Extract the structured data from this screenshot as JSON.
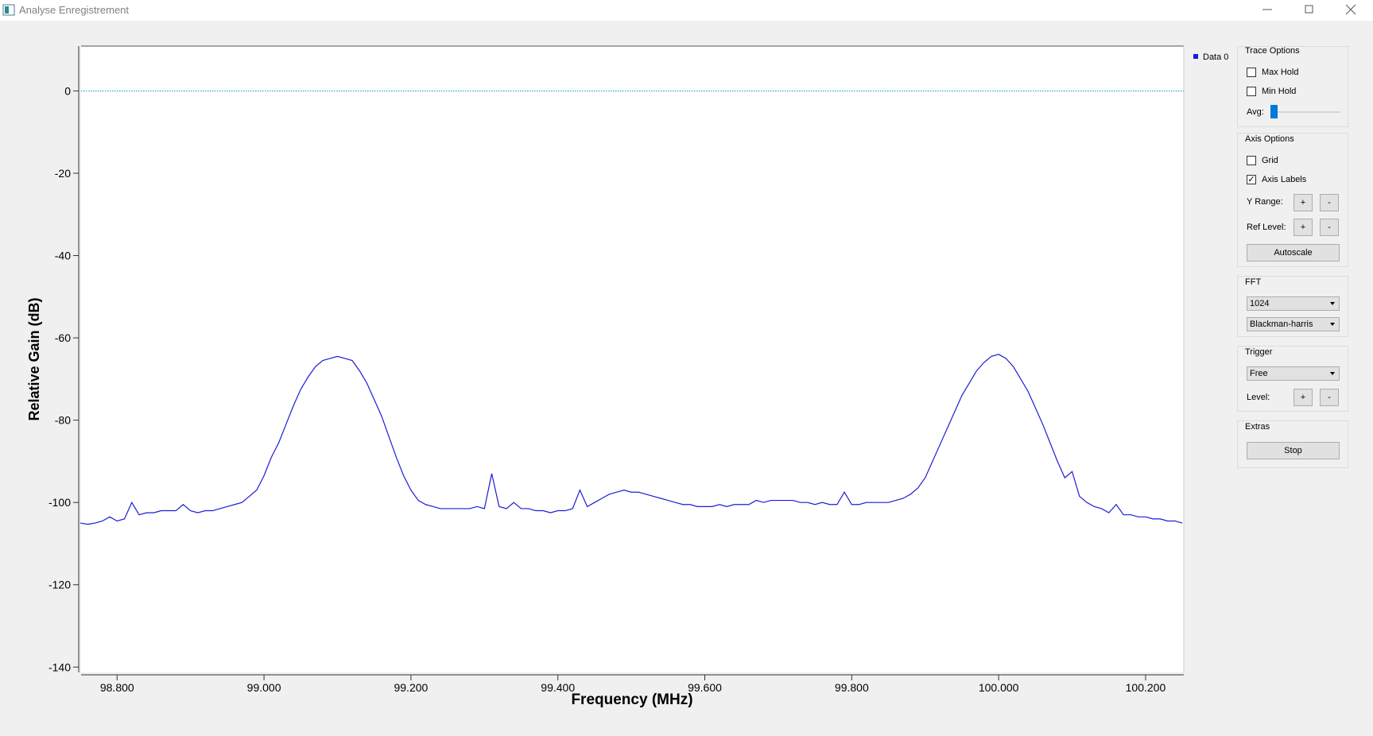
{
  "window": {
    "title": "Analyse Enregistrement"
  },
  "chart_data": {
    "type": "line",
    "xlabel": "Frequency (MHz)",
    "ylabel": "Relative Gain (dB)",
    "xlim": [
      98.751,
      100.252
    ],
    "ylim": [
      -141.3,
      10.9
    ],
    "xticks": [
      {
        "value": 98.8,
        "label": "98.800"
      },
      {
        "value": 99.0,
        "label": "99.000"
      },
      {
        "value": 99.2,
        "label": "99.200"
      },
      {
        "value": 99.4,
        "label": "99.400"
      },
      {
        "value": 99.6,
        "label": "99.600"
      },
      {
        "value": 99.8,
        "label": "99.800"
      },
      {
        "value": 100.0,
        "label": "100.000"
      },
      {
        "value": 100.2,
        "label": "100.200"
      }
    ],
    "yticks": [
      -140,
      -120,
      -100,
      -80,
      -60,
      -40,
      -20,
      0
    ],
    "grid": false,
    "legend": "top-right",
    "reference_line": {
      "value": 0,
      "color": "#1aa3c4"
    },
    "series": [
      {
        "name": "Data 0",
        "color": "#1c1cd6",
        "x": [
          98.75,
          98.76,
          98.77,
          98.78,
          98.79,
          98.8,
          98.81,
          98.82,
          98.83,
          98.84,
          98.85,
          98.86,
          98.87,
          98.88,
          98.89,
          98.9,
          98.91,
          98.92,
          98.93,
          98.94,
          98.95,
          98.96,
          98.97,
          98.98,
          98.99,
          99.0,
          99.01,
          99.02,
          99.03,
          99.04,
          99.05,
          99.06,
          99.07,
          99.08,
          99.09,
          99.1,
          99.11,
          99.12,
          99.13,
          99.14,
          99.15,
          99.16,
          99.17,
          99.18,
          99.19,
          99.2,
          99.21,
          99.22,
          99.23,
          99.24,
          99.25,
          99.26,
          99.27,
          99.28,
          99.29,
          99.3,
          99.31,
          99.32,
          99.33,
          99.34,
          99.35,
          99.36,
          99.37,
          99.38,
          99.39,
          99.4,
          99.41,
          99.42,
          99.43,
          99.44,
          99.45,
          99.46,
          99.47,
          99.48,
          99.49,
          99.5,
          99.51,
          99.52,
          99.53,
          99.54,
          99.55,
          99.56,
          99.57,
          99.58,
          99.59,
          99.6,
          99.61,
          99.62,
          99.63,
          99.64,
          99.65,
          99.66,
          99.67,
          99.68,
          99.69,
          99.7,
          99.71,
          99.72,
          99.73,
          99.74,
          99.75,
          99.76,
          99.77,
          99.78,
          99.79,
          99.8,
          99.81,
          99.82,
          99.83,
          99.84,
          99.85,
          99.86,
          99.87,
          99.88,
          99.89,
          99.9,
          99.91,
          99.92,
          99.93,
          99.94,
          99.95,
          99.96,
          99.97,
          99.98,
          99.99,
          100.0,
          100.01,
          100.02,
          100.03,
          100.04,
          100.05,
          100.06,
          100.07,
          100.08,
          100.09,
          100.1,
          100.11,
          100.12,
          100.13,
          100.14,
          100.15,
          100.16,
          100.17,
          100.18,
          100.19,
          100.2,
          100.21,
          100.22,
          100.23,
          100.24,
          100.25
        ],
        "values": [
          -105,
          -105.3,
          -105,
          -104.5,
          -103.5,
          -104.5,
          -104,
          -100,
          -103,
          -102.5,
          -102.5,
          -102,
          -102,
          -102,
          -100.5,
          -102,
          -102.5,
          -102,
          -102,
          -101.5,
          -101,
          -100.5,
          -100,
          -98.5,
          -97,
          -93.5,
          -89,
          -85.5,
          -81,
          -76.5,
          -72.5,
          -69.5,
          -67,
          -65.5,
          -65,
          -64.5,
          -65,
          -65.5,
          -68,
          -71,
          -75,
          -79,
          -84,
          -89,
          -93.5,
          -97,
          -99.5,
          -100.5,
          -101,
          -101.5,
          -101.5,
          -101.5,
          -101.5,
          -101.5,
          -101,
          -101.5,
          -93,
          -101,
          -101.5,
          -100,
          -101.5,
          -101.5,
          -102,
          -102,
          -102.5,
          -102,
          -102,
          -101.5,
          -97,
          -101,
          -100,
          -99,
          -98,
          -97.5,
          -97,
          -97.5,
          -97.5,
          -98,
          -98.5,
          -99,
          -99.5,
          -100,
          -100.5,
          -100.5,
          -101,
          -101,
          -101,
          -100.5,
          -101,
          -100.5,
          -100.5,
          -100.5,
          -99.5,
          -100,
          -99.5,
          -99.5,
          -99.5,
          -99.5,
          -100,
          -100,
          -100.5,
          -100,
          -100.5,
          -100.5,
          -97.5,
          -100.5,
          -100.5,
          -100,
          -100,
          -100,
          -100,
          -99.5,
          -99,
          -98,
          -96.5,
          -94,
          -90,
          -86,
          -82,
          -78,
          -74,
          -71,
          -68,
          -66,
          -64.5,
          -64,
          -65,
          -67,
          -70,
          -73,
          -77,
          -81,
          -85.5,
          -90,
          -94,
          -92.5,
          -98.5,
          -100,
          -101,
          -101.5,
          -102.5,
          -100.5,
          -103,
          -103,
          -103.5,
          -103.5,
          -104,
          -104,
          -104.5,
          -104.5,
          -105
        ]
      }
    ]
  },
  "panel": {
    "trace": {
      "title": "Trace Options",
      "max_hold": {
        "label": "Max Hold",
        "checked": false
      },
      "min_hold": {
        "label": "Min Hold",
        "checked": false
      },
      "avg": "Avg:"
    },
    "axis": {
      "title": "Axis Options",
      "grid": {
        "label": "Grid",
        "checked": false
      },
      "axis_labels": {
        "label": "Axis Labels",
        "checked": true
      },
      "y_range": "Y Range:",
      "ref_level": "Ref Level:",
      "plus": "+",
      "minus": "-",
      "autoscale": "Autoscale"
    },
    "fft": {
      "title": "FFT",
      "size": "1024",
      "window": "Blackman-harris"
    },
    "trigger": {
      "title": "Trigger",
      "mode": "Free",
      "level": "Level:"
    },
    "extras": {
      "title": "Extras",
      "stop": "Stop"
    }
  }
}
